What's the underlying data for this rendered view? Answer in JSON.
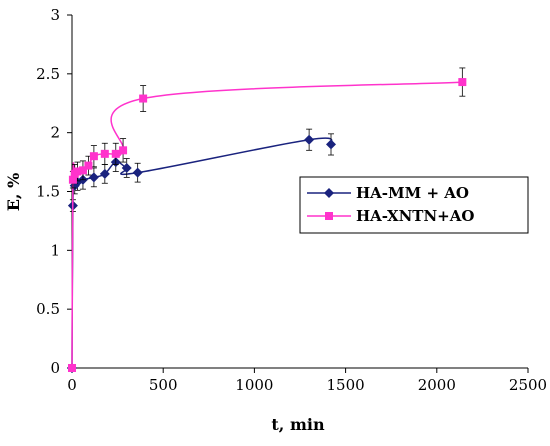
{
  "chart_data": {
    "type": "line",
    "xlabel": "t, min",
    "ylabel": "E, %",
    "xlim": [
      0,
      2500
    ],
    "ylim": [
      0,
      3
    ],
    "x_ticks": [
      "0",
      "500",
      "1000",
      "1500",
      "2000",
      "2500"
    ],
    "y_ticks": [
      "0",
      "0.5",
      "1",
      "1.5",
      "2",
      "2.5",
      "3"
    ],
    "grid": false,
    "legend_position": "center-right",
    "series": [
      {
        "name": "HA-MM + AO",
        "color": "#1a237e",
        "marker": "diamond",
        "points": [
          {
            "x": 0,
            "y": 0
          },
          {
            "x": 5,
            "y": 1.38
          },
          {
            "x": 15,
            "y": 1.55
          },
          {
            "x": 30,
            "y": 1.58
          },
          {
            "x": 60,
            "y": 1.6
          },
          {
            "x": 120,
            "y": 1.62
          },
          {
            "x": 180,
            "y": 1.65
          },
          {
            "x": 240,
            "y": 1.75
          },
          {
            "x": 300,
            "y": 1.7
          },
          {
            "x": 360,
            "y": 1.66
          },
          {
            "x": 1300,
            "y": 1.94
          },
          {
            "x": 1420,
            "y": 1.9
          }
        ],
        "errors": [
          0,
          0.05,
          0.07,
          0.07,
          0.08,
          0.08,
          0.08,
          0.08,
          0.08,
          0.08,
          0.09,
          0.09
        ]
      },
      {
        "name": "HA-XNTN+AO",
        "color": "#ff33cc",
        "marker": "square",
        "points": [
          {
            "x": 0,
            "y": 0
          },
          {
            "x": 5,
            "y": 1.6
          },
          {
            "x": 15,
            "y": 1.65
          },
          {
            "x": 30,
            "y": 1.67
          },
          {
            "x": 60,
            "y": 1.68
          },
          {
            "x": 90,
            "y": 1.72
          },
          {
            "x": 120,
            "y": 1.8
          },
          {
            "x": 180,
            "y": 1.82
          },
          {
            "x": 240,
            "y": 1.82
          },
          {
            "x": 280,
            "y": 1.85
          },
          {
            "x": 390,
            "y": 2.29
          },
          {
            "x": 2140,
            "y": 2.43
          }
        ],
        "errors": [
          0,
          0.07,
          0.08,
          0.08,
          0.08,
          0.08,
          0.09,
          0.09,
          0.09,
          0.1,
          0.11,
          0.12
        ]
      }
    ]
  }
}
